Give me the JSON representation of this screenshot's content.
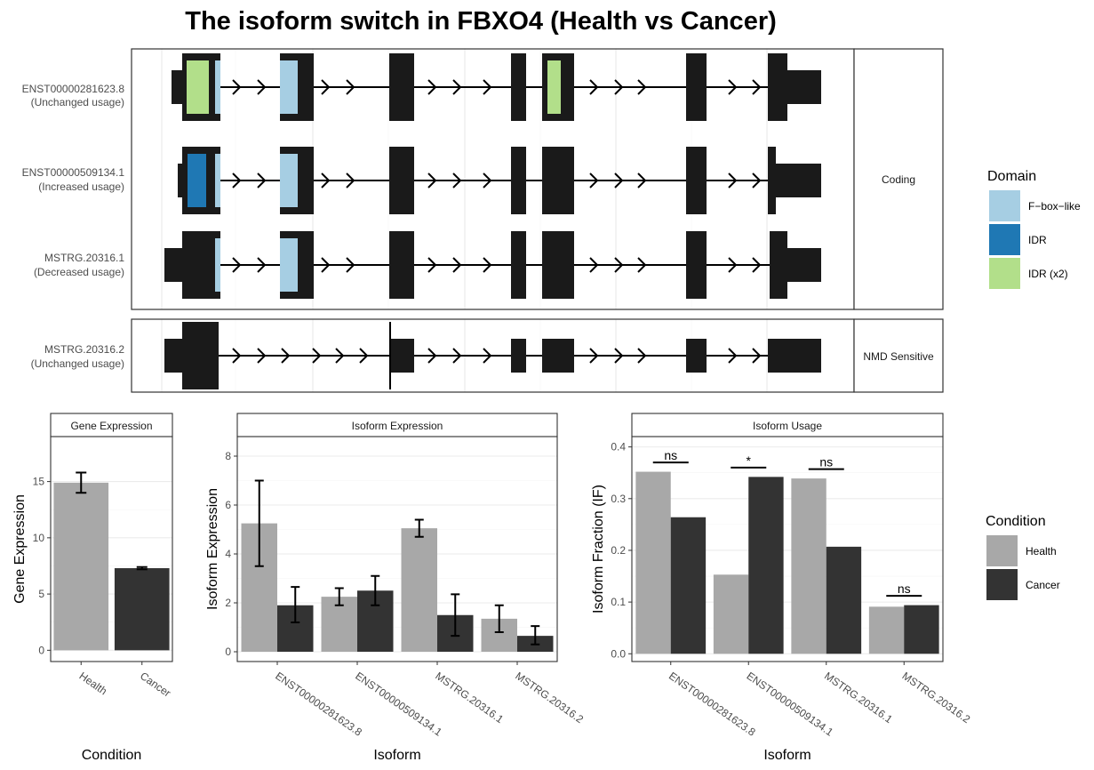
{
  "title": "The isoform switch in FBXO4 (Health vs Cancer)",
  "colors": {
    "health": "#a8a8a8",
    "cancer": "#333333",
    "exon": "#1a1a1a",
    "fbox": "#a6cee3",
    "idr": "#1f78b4",
    "idr2": "#b2df8a"
  },
  "structure": {
    "strips": [
      "Coding",
      "NMD Sensitive"
    ],
    "isoforms": [
      {
        "id": "ENST00000281623.8",
        "note": "(Unchanged usage)",
        "group": "Coding"
      },
      {
        "id": "ENST00000509134.1",
        "note": "(Increased usage)",
        "group": "Coding"
      },
      {
        "id": "MSTRG.20316.1",
        "note": "(Decreased usage)",
        "group": "Coding"
      },
      {
        "id": "MSTRG.20316.2",
        "note": "(Unchanged usage)",
        "group": "NMD Sensitive"
      }
    ],
    "domain_legend": {
      "title": "Domain",
      "items": [
        {
          "label": "F−box−like",
          "color": "#a6cee3"
        },
        {
          "label": "IDR",
          "color": "#1f78b4"
        },
        {
          "label": "IDR (x2)",
          "color": "#b2df8a"
        }
      ]
    }
  },
  "chart_data": [
    {
      "type": "bar",
      "title": "Gene Expression",
      "xlabel": "Condition",
      "ylabel": "Gene Expression",
      "categories": [
        "Health",
        "Cancer"
      ],
      "values": [
        14.9,
        7.3
      ],
      "err_low": [
        14.0,
        7.2
      ],
      "err_high": [
        15.8,
        7.4
      ],
      "ylim": [
        -1,
        19
      ],
      "yticks": [
        0,
        5,
        10,
        15
      ]
    },
    {
      "type": "bar",
      "title": "Isoform Expression",
      "xlabel": "Isoform",
      "ylabel": "Isoform Expression",
      "categories": [
        "ENST00000281623.8",
        "ENST00000509134.1",
        "MSTRG.20316.1",
        "MSTRG.20316.2"
      ],
      "series": [
        {
          "name": "Health",
          "values": [
            5.25,
            2.25,
            5.05,
            1.35
          ],
          "err_low": [
            3.5,
            1.9,
            4.7,
            0.8
          ],
          "err_high": [
            7.0,
            2.6,
            5.4,
            1.9
          ]
        },
        {
          "name": "Cancer",
          "values": [
            1.9,
            2.5,
            1.5,
            0.65
          ],
          "err_low": [
            1.2,
            1.9,
            0.65,
            0.3
          ],
          "err_high": [
            2.65,
            3.1,
            2.35,
            1.05
          ]
        }
      ],
      "ylim": [
        -0.4,
        8.8
      ],
      "yticks": [
        0,
        2,
        4,
        6,
        8
      ]
    },
    {
      "type": "bar",
      "title": "Isoform Usage",
      "xlabel": "Isoform",
      "ylabel": "Isoform Fraction (IF)",
      "categories": [
        "ENST00000281623.8",
        "ENST00000509134.1",
        "MSTRG.20316.1",
        "MSTRG.20316.2"
      ],
      "series": [
        {
          "name": "Health",
          "values": [
            0.352,
            0.153,
            0.339,
            0.091
          ]
        },
        {
          "name": "Cancer",
          "values": [
            0.264,
            0.342,
            0.207,
            0.094
          ]
        }
      ],
      "significance": [
        "ns",
        "*",
        "ns",
        "ns"
      ],
      "ylim": [
        -0.015,
        0.42
      ],
      "yticks": [
        "0.0",
        "0.1",
        "0.2",
        "0.3",
        "0.4"
      ]
    }
  ],
  "condition_legend": {
    "title": "Condition",
    "items": [
      {
        "label": "Health",
        "color": "#a8a8a8"
      },
      {
        "label": "Cancer",
        "color": "#333333"
      }
    ]
  }
}
